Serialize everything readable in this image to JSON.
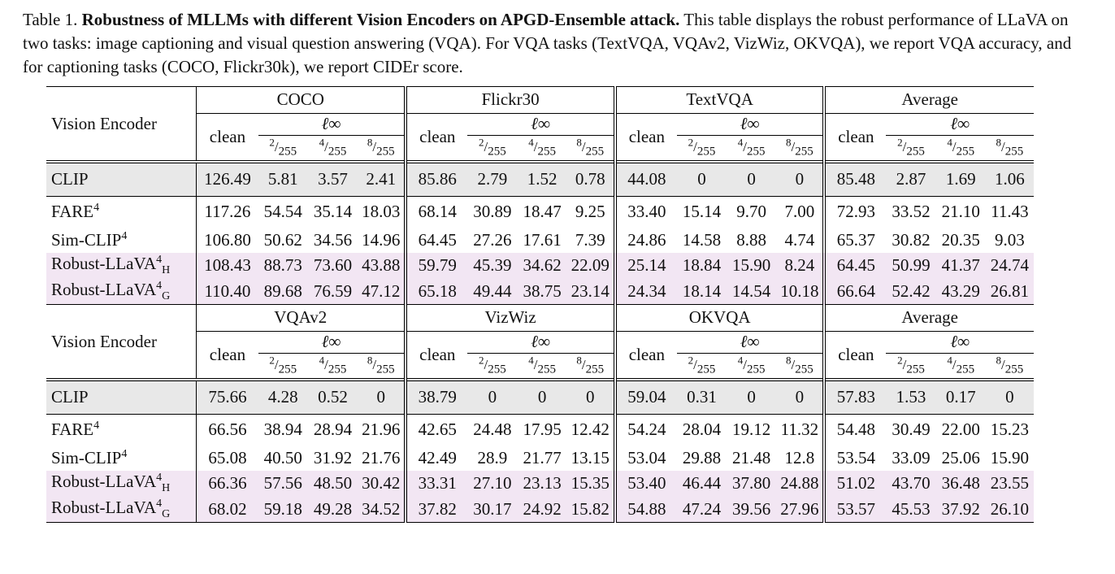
{
  "caption": {
    "label": "Table 1.",
    "title": "Robustness of MLLMs with different Vision Encoders on APGD-Ensemble attack.",
    "text": "This table displays the robust performance of LLaVA on two tasks: image captioning and visual question answering (VQA). For VQA tasks (TextVQA, VQAv2, VizWiz, OKVQA), we report VQA accuracy, and for captioning tasks (COCO, Flickr30k), we report CIDEr score."
  },
  "header": {
    "vision_encoder": "Vision Encoder",
    "clean": "clean",
    "linf": "ℓ∞",
    "eps": [
      "2/255",
      "4/255",
      "8/255"
    ]
  },
  "blocks": [
    {
      "groups": [
        "COCO",
        "Flickr30",
        "TextVQA",
        "Average"
      ],
      "clip": {
        "name": "CLIP",
        "values": [
          "126.49",
          "5.81",
          "3.57",
          "2.41",
          "85.86",
          "2.79",
          "1.52",
          "0.78",
          "44.08",
          "0",
          "0",
          "0",
          "85.48",
          "2.87",
          "1.69",
          "1.06"
        ]
      },
      "rows": [
        {
          "name": "FARE⁴",
          "values": [
            "117.26",
            "54.54",
            "35.14",
            "18.03",
            "68.14",
            "30.89",
            "18.47",
            "9.25",
            "33.40",
            "15.14",
            "9.70",
            "7.00",
            "72.93",
            "33.52",
            "21.10",
            "11.43"
          ]
        },
        {
          "name": "Sim-CLIP⁴",
          "values": [
            "106.80",
            "50.62",
            "34.56",
            "14.96",
            "64.45",
            "27.26",
            "17.61",
            "7.39",
            "24.86",
            "14.58",
            "8.88",
            "4.74",
            "65.37",
            "30.82",
            "20.35",
            "9.03"
          ]
        },
        {
          "name": "Robust-LLaVA⁴H",
          "values": [
            "108.43",
            "88.73",
            "73.60",
            "43.88",
            "59.79",
            "45.39",
            "34.62",
            "22.09",
            "25.14",
            "18.84",
            "15.90",
            "8.24",
            "64.45",
            "50.99",
            "41.37",
            "24.74"
          ]
        },
        {
          "name": "Robust-LLaVA⁴G",
          "values": [
            "110.40",
            "89.68",
            "76.59",
            "47.12",
            "65.18",
            "49.44",
            "38.75",
            "23.14",
            "24.34",
            "18.14",
            "14.54",
            "10.18",
            "66.64",
            "52.42",
            "43.29",
            "26.81"
          ]
        }
      ]
    },
    {
      "groups": [
        "VQAv2",
        "VizWiz",
        "OKVQA",
        "Average"
      ],
      "clip": {
        "name": "CLIP",
        "values": [
          "75.66",
          "4.28",
          "0.52",
          "0",
          "38.79",
          "0",
          "0",
          "0",
          "59.04",
          "0.31",
          "0",
          "0",
          "57.83",
          "1.53",
          "0.17",
          "0"
        ]
      },
      "rows": [
        {
          "name": "FARE⁴",
          "values": [
            "66.56",
            "38.94",
            "28.94",
            "21.96",
            "42.65",
            "24.48",
            "17.95",
            "12.42",
            "54.24",
            "28.04",
            "19.12",
            "11.32",
            "54.48",
            "30.49",
            "22.00",
            "15.23"
          ]
        },
        {
          "name": "Sim-CLIP⁴",
          "values": [
            "65.08",
            "40.50",
            "31.92",
            "21.76",
            "42.49",
            "28.9",
            "21.77",
            "13.15",
            "53.04",
            "29.88",
            "21.48",
            "12.8",
            "53.54",
            "33.09",
            "25.06",
            "15.90"
          ]
        },
        {
          "name": "Robust-LLaVA⁴H",
          "values": [
            "66.36",
            "57.56",
            "48.50",
            "30.42",
            "33.31",
            "27.10",
            "23.13",
            "15.35",
            "53.40",
            "46.44",
            "37.80",
            "24.88",
            "51.02",
            "43.70",
            "36.48",
            "23.55"
          ]
        },
        {
          "name": "Robust-LLaVA⁴G",
          "values": [
            "68.02",
            "59.18",
            "49.28",
            "34.52",
            "37.82",
            "30.17",
            "24.92",
            "15.82",
            "54.88",
            "47.24",
            "39.56",
            "27.96",
            "53.57",
            "45.53",
            "37.92",
            "26.10"
          ]
        }
      ]
    }
  ]
}
